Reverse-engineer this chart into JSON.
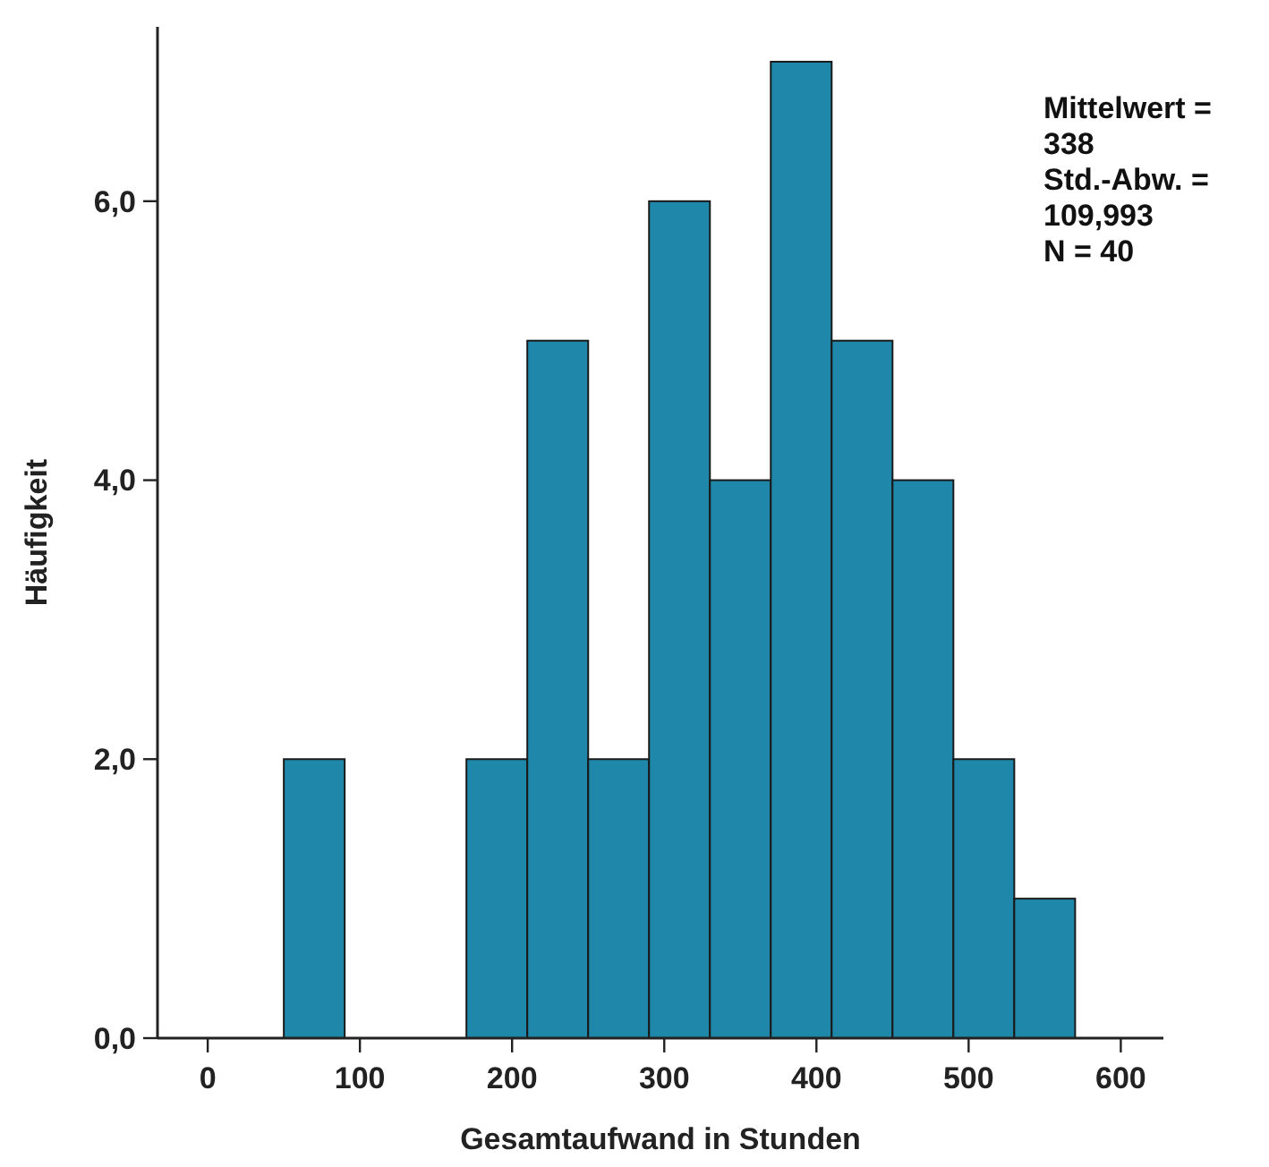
{
  "chart_data": {
    "type": "histogram",
    "xlabel": "Gesamtaufwand in Stunden",
    "ylabel": "Häufigkeit",
    "bins": [
      50,
      90,
      130,
      170,
      210,
      250,
      290,
      330,
      370,
      410,
      450,
      490,
      530,
      570
    ],
    "values": [
      2,
      0,
      0,
      2,
      5,
      2,
      6,
      4,
      7,
      5,
      4,
      2,
      1
    ],
    "color": "#1f88aa",
    "xlim": [
      -33,
      628
    ],
    "xticks": [
      0,
      100,
      200,
      300,
      400,
      500,
      600
    ],
    "ylim": [
      0,
      7.25
    ],
    "yticks": [
      {
        "value": 0,
        "label": "0,0"
      },
      {
        "value": 2,
        "label": "2,0"
      },
      {
        "value": 4,
        "label": "4,0"
      },
      {
        "value": 6,
        "label": "6,0"
      }
    ],
    "grid": false,
    "annotations": [
      "Mittelwert = 338",
      "Std.-Abw. = 109,993",
      "N = 40"
    ]
  }
}
